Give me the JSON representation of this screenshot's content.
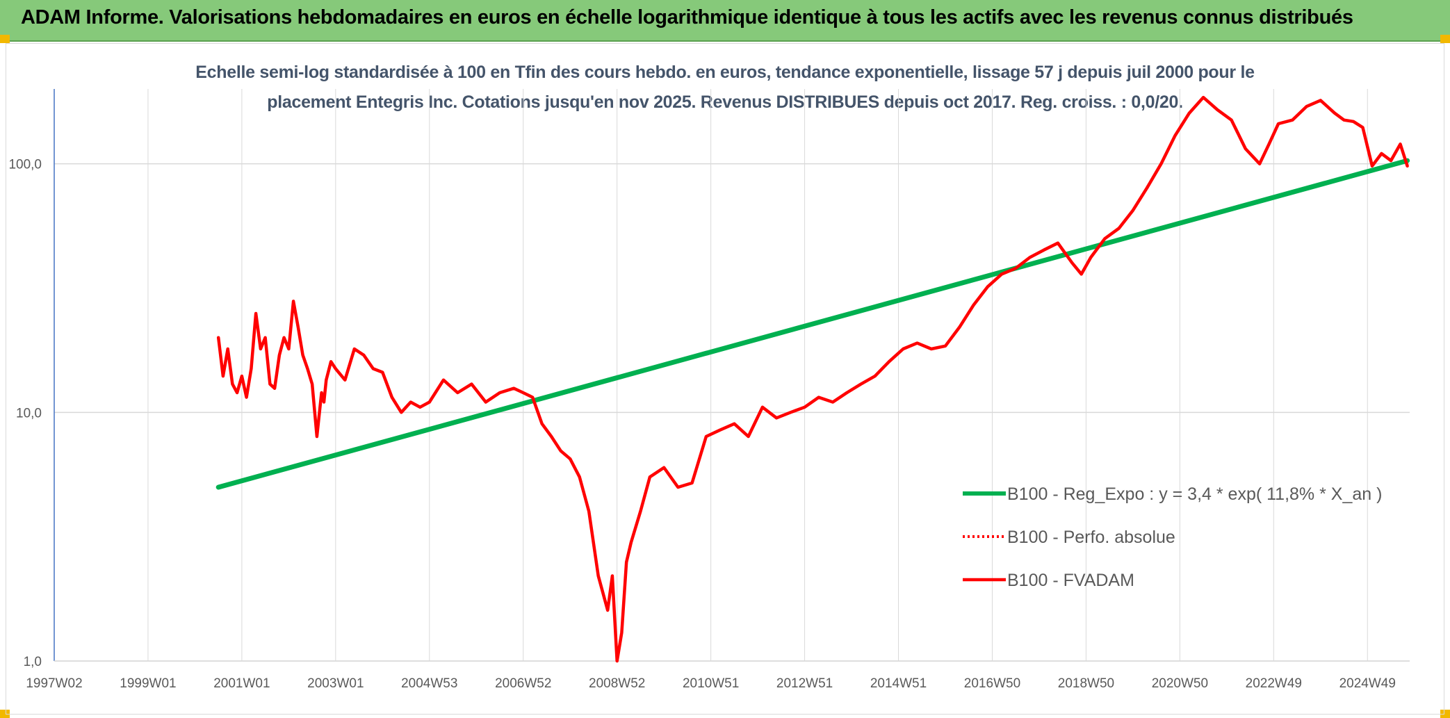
{
  "header": {
    "title": "ADAM Informe. Valorisations hebdomadaires en euros en échelle logarithmique identique à tous les actifs avec les revenus connus distribués"
  },
  "colors": {
    "header_bg": "#86c97a",
    "trend": "#00b050",
    "series": "#ff0000",
    "grid": "#d9d9d9",
    "axis_text": "#595959"
  },
  "chart_data": {
    "type": "line",
    "title_line1": "Echelle semi-log standardisée à 100 en Tfin des cours hebdo. en euros, tendance exponentielle, lissage 57 j depuis juil 2000 pour le",
    "title_line2": "placement Entegris Inc. Cotations jusqu'en nov 2025. Revenus DISTRIBUES depuis oct 2017. Reg. croiss. : 0,0/20.",
    "y_scale": "log",
    "ylim": [
      1,
      200
    ],
    "y_ticks": [
      {
        "value": 1,
        "label": "1,0"
      },
      {
        "value": 10,
        "label": "10,0"
      },
      {
        "value": 100,
        "label": "100,0"
      }
    ],
    "x_range": [
      1997.0,
      2025.9
    ],
    "x_ticks": [
      {
        "x": 1997.0,
        "label": "1997W02"
      },
      {
        "x": 1999.0,
        "label": "1999W01"
      },
      {
        "x": 2001.0,
        "label": "2001W01"
      },
      {
        "x": 2003.0,
        "label": "2003W01"
      },
      {
        "x": 2005.0,
        "label": "2004W53"
      },
      {
        "x": 2007.0,
        "label": "2006W52"
      },
      {
        "x": 2009.0,
        "label": "2008W52"
      },
      {
        "x": 2011.0,
        "label": "2010W51"
      },
      {
        "x": 2013.0,
        "label": "2012W51"
      },
      {
        "x": 2015.0,
        "label": "2014W51"
      },
      {
        "x": 2017.0,
        "label": "2016W50"
      },
      {
        "x": 2019.0,
        "label": "2018W50"
      },
      {
        "x": 2021.0,
        "label": "2020W50"
      },
      {
        "x": 2023.0,
        "label": "2022W49"
      },
      {
        "x": 2025.0,
        "label": "2024W49"
      }
    ],
    "grid": true,
    "legend_position": "right",
    "series": [
      {
        "name": "B100 - Reg_Expo : y = 3,4 * exp( 11,8% *  X_an )",
        "style": "solid-green",
        "x": [
          2000.5,
          2025.85
        ],
        "y": [
          5.0,
          103.0
        ]
      },
      {
        "name": "B100 - Perfo. absolue",
        "style": "dotted-red",
        "x": [],
        "y": []
      },
      {
        "name": "B100 - FVADAM",
        "style": "solid-red",
        "x": [
          2000.5,
          2000.6,
          2000.7,
          2000.8,
          2000.9,
          2001.0,
          2001.1,
          2001.2,
          2001.3,
          2001.4,
          2001.5,
          2001.6,
          2001.7,
          2001.8,
          2001.9,
          2002.0,
          2002.1,
          2002.2,
          2002.3,
          2002.4,
          2002.5,
          2002.6,
          2002.7,
          2002.75,
          2002.8,
          2002.9,
          2003.0,
          2003.2,
          2003.4,
          2003.6,
          2003.8,
          2004.0,
          2004.2,
          2004.4,
          2004.6,
          2004.8,
          2005.0,
          2005.3,
          2005.6,
          2005.9,
          2006.2,
          2006.5,
          2006.8,
          2007.0,
          2007.2,
          2007.4,
          2007.6,
          2007.8,
          2008.0,
          2008.2,
          2008.4,
          2008.6,
          2008.8,
          2008.9,
          2009.0,
          2009.1,
          2009.2,
          2009.3,
          2009.5,
          2009.7,
          2010.0,
          2010.3,
          2010.6,
          2010.9,
          2011.2,
          2011.5,
          2011.8,
          2012.1,
          2012.4,
          2012.7,
          2013.0,
          2013.3,
          2013.6,
          2013.9,
          2014.2,
          2014.5,
          2014.8,
          2015.1,
          2015.4,
          2015.7,
          2016.0,
          2016.3,
          2016.6,
          2016.9,
          2017.2,
          2017.5,
          2017.8,
          2018.1,
          2018.4,
          2018.7,
          2018.9,
          2019.1,
          2019.4,
          2019.7,
          2020.0,
          2020.3,
          2020.6,
          2020.9,
          2021.2,
          2021.5,
          2021.8,
          2022.1,
          2022.4,
          2022.7,
          2022.9,
          2023.1,
          2023.4,
          2023.7,
          2024.0,
          2024.3,
          2024.5,
          2024.7,
          2024.9,
          2025.1,
          2025.3,
          2025.5,
          2025.7,
          2025.85
        ],
        "y": [
          20.0,
          14.0,
          18.0,
          13.0,
          12.0,
          14.0,
          11.5,
          15.0,
          25.0,
          18.0,
          20.0,
          13.0,
          12.5,
          17.0,
          20.0,
          18.0,
          28.0,
          22.0,
          17.0,
          15.0,
          13.0,
          8.0,
          12.0,
          11.0,
          13.5,
          16.0,
          15.0,
          13.5,
          18.0,
          17.0,
          15.0,
          14.5,
          11.5,
          10.0,
          11.0,
          10.5,
          11.0,
          13.5,
          12.0,
          13.0,
          11.0,
          12.0,
          12.5,
          12.0,
          11.5,
          9.0,
          8.0,
          7.0,
          6.5,
          5.5,
          4.0,
          2.2,
          1.6,
          2.2,
          1.0,
          1.3,
          2.5,
          3.0,
          4.0,
          5.5,
          6.0,
          5.0,
          5.2,
          8.0,
          8.5,
          9.0,
          8.0,
          10.5,
          9.5,
          10.0,
          10.5,
          11.5,
          11.0,
          12.0,
          13.0,
          14.0,
          16.0,
          18.0,
          19.0,
          18.0,
          18.5,
          22.0,
          27.0,
          32.0,
          36.0,
          38.0,
          42.0,
          45.0,
          48.0,
          40.0,
          36.0,
          42.0,
          50.0,
          55.0,
          65.0,
          80.0,
          100.0,
          130.0,
          160.0,
          185.0,
          165.0,
          150.0,
          115.0,
          100.0,
          120.0,
          145.0,
          150.0,
          170.0,
          180.0,
          160.0,
          150.0,
          148.0,
          140.0,
          98.0,
          110.0,
          103.0,
          120.0,
          98.0
        ]
      }
    ]
  }
}
